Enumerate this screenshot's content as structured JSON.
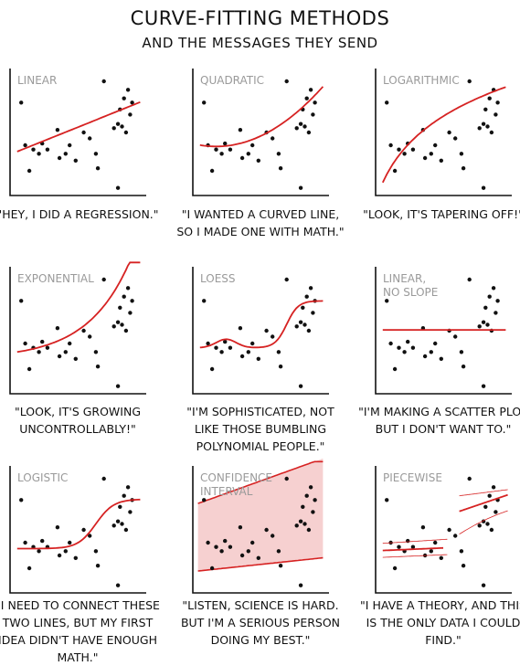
{
  "title": "Curve-Fitting Methods",
  "subtitle": "and the messages they send",
  "chart_data": [
    {
      "type": "scatter",
      "title": "Linear",
      "caption": "\"Hey, I did a regression.\"",
      "points": [
        [
          0.5,
          0.9
        ],
        [
          0.7,
          0.1
        ],
        [
          0.6,
          0.4
        ],
        [
          0.8,
          0.35
        ],
        [
          0.94,
          0.3
        ],
        [
          1.02,
          0.42
        ],
        [
          1.15,
          0.35
        ],
        [
          1.4,
          0.58
        ],
        [
          1.45,
          0.25
        ],
        [
          1.6,
          0.3
        ],
        [
          1.7,
          0.4
        ],
        [
          1.85,
          0.22
        ],
        [
          2.05,
          0.55
        ],
        [
          2.2,
          0.48
        ],
        [
          2.35,
          0.3
        ],
        [
          2.4,
          0.13
        ],
        [
          2.55,
          1.15
        ],
        [
          2.8,
          0.6
        ],
        [
          2.9,
          0.65
        ],
        [
          2.95,
          0.82
        ],
        [
          3.05,
          0.95
        ],
        [
          3.15,
          1.05
        ],
        [
          3.25,
          0.9
        ],
        [
          3.2,
          0.76
        ],
        [
          3.0,
          0.62
        ],
        [
          3.1,
          0.55
        ],
        [
          2.9,
          -0.1
        ]
      ],
      "curve": "linear"
    },
    {
      "type": "scatter",
      "title": "Quadratic",
      "caption": "\"I wanted a curved line, so I made one with math.\"",
      "points": [
        [
          0.5,
          0.9
        ],
        [
          0.7,
          0.1
        ],
        [
          0.6,
          0.4
        ],
        [
          0.8,
          0.35
        ],
        [
          0.94,
          0.3
        ],
        [
          1.02,
          0.42
        ],
        [
          1.15,
          0.35
        ],
        [
          1.4,
          0.58
        ],
        [
          1.45,
          0.25
        ],
        [
          1.6,
          0.3
        ],
        [
          1.7,
          0.4
        ],
        [
          1.85,
          0.22
        ],
        [
          2.05,
          0.55
        ],
        [
          2.2,
          0.48
        ],
        [
          2.35,
          0.3
        ],
        [
          2.4,
          0.13
        ],
        [
          2.55,
          1.15
        ],
        [
          2.8,
          0.6
        ],
        [
          2.9,
          0.65
        ],
        [
          2.95,
          0.82
        ],
        [
          3.05,
          0.95
        ],
        [
          3.15,
          1.05
        ],
        [
          3.25,
          0.9
        ],
        [
          3.2,
          0.76
        ],
        [
          3.0,
          0.62
        ],
        [
          3.1,
          0.55
        ],
        [
          2.9,
          -0.1
        ]
      ],
      "curve": "quadratic"
    },
    {
      "type": "scatter",
      "title": "Logarithmic",
      "caption": "\"Look, it's tapering off!\"",
      "points": [
        [
          0.5,
          0.9
        ],
        [
          0.7,
          0.1
        ],
        [
          0.6,
          0.4
        ],
        [
          0.8,
          0.35
        ],
        [
          0.94,
          0.3
        ],
        [
          1.02,
          0.42
        ],
        [
          1.15,
          0.35
        ],
        [
          1.4,
          0.58
        ],
        [
          1.45,
          0.25
        ],
        [
          1.6,
          0.3
        ],
        [
          1.7,
          0.4
        ],
        [
          1.85,
          0.22
        ],
        [
          2.05,
          0.55
        ],
        [
          2.2,
          0.48
        ],
        [
          2.35,
          0.3
        ],
        [
          2.4,
          0.13
        ],
        [
          2.55,
          1.15
        ],
        [
          2.8,
          0.6
        ],
        [
          2.9,
          0.65
        ],
        [
          2.95,
          0.82
        ],
        [
          3.05,
          0.95
        ],
        [
          3.15,
          1.05
        ],
        [
          3.25,
          0.9
        ],
        [
          3.2,
          0.76
        ],
        [
          3.0,
          0.62
        ],
        [
          3.1,
          0.55
        ],
        [
          2.9,
          -0.1
        ]
      ],
      "curve": "logarithmic"
    },
    {
      "type": "scatter",
      "title": "Exponential",
      "caption": "\"Look, it's growing uncontrollably!\"",
      "points": [
        [
          0.5,
          0.9
        ],
        [
          0.7,
          0.1
        ],
        [
          0.6,
          0.4
        ],
        [
          0.8,
          0.35
        ],
        [
          0.94,
          0.3
        ],
        [
          1.02,
          0.42
        ],
        [
          1.15,
          0.35
        ],
        [
          1.4,
          0.58
        ],
        [
          1.45,
          0.25
        ],
        [
          1.6,
          0.3
        ],
        [
          1.7,
          0.4
        ],
        [
          1.85,
          0.22
        ],
        [
          2.05,
          0.55
        ],
        [
          2.2,
          0.48
        ],
        [
          2.35,
          0.3
        ],
        [
          2.4,
          0.13
        ],
        [
          2.55,
          1.15
        ],
        [
          2.8,
          0.6
        ],
        [
          2.9,
          0.65
        ],
        [
          2.95,
          0.82
        ],
        [
          3.05,
          0.95
        ],
        [
          3.15,
          1.05
        ],
        [
          3.25,
          0.9
        ],
        [
          3.2,
          0.76
        ],
        [
          3.0,
          0.62
        ],
        [
          3.1,
          0.55
        ],
        [
          2.9,
          -0.1
        ]
      ],
      "curve": "exponential"
    },
    {
      "type": "scatter",
      "title": "LOESS",
      "caption": "\"I'm sophisticated, not like those bumbling polynomial people.\"",
      "points": [
        [
          0.5,
          0.9
        ],
        [
          0.7,
          0.1
        ],
        [
          0.6,
          0.4
        ],
        [
          0.8,
          0.35
        ],
        [
          0.94,
          0.3
        ],
        [
          1.02,
          0.42
        ],
        [
          1.15,
          0.35
        ],
        [
          1.4,
          0.58
        ],
        [
          1.45,
          0.25
        ],
        [
          1.6,
          0.3
        ],
        [
          1.7,
          0.4
        ],
        [
          1.85,
          0.22
        ],
        [
          2.05,
          0.55
        ],
        [
          2.2,
          0.48
        ],
        [
          2.35,
          0.3
        ],
        [
          2.4,
          0.13
        ],
        [
          2.55,
          1.15
        ],
        [
          2.8,
          0.6
        ],
        [
          2.9,
          0.65
        ],
        [
          2.95,
          0.82
        ],
        [
          3.05,
          0.95
        ],
        [
          3.15,
          1.05
        ],
        [
          3.25,
          0.9
        ],
        [
          3.2,
          0.76
        ],
        [
          3.0,
          0.62
        ],
        [
          3.1,
          0.55
        ],
        [
          2.9,
          -0.1
        ]
      ],
      "curve": "loess"
    },
    {
      "type": "scatter",
      "title": "Linear,\nno slope",
      "caption": "\"I'm making a scatter plot but I don't want to.\"",
      "points": [
        [
          0.5,
          0.9
        ],
        [
          0.7,
          0.1
        ],
        [
          0.6,
          0.4
        ],
        [
          0.8,
          0.35
        ],
        [
          0.94,
          0.3
        ],
        [
          1.02,
          0.42
        ],
        [
          1.15,
          0.35
        ],
        [
          1.4,
          0.58
        ],
        [
          1.45,
          0.25
        ],
        [
          1.6,
          0.3
        ],
        [
          1.7,
          0.4
        ],
        [
          1.85,
          0.22
        ],
        [
          2.05,
          0.55
        ],
        [
          2.2,
          0.48
        ],
        [
          2.35,
          0.3
        ],
        [
          2.4,
          0.13
        ],
        [
          2.55,
          1.15
        ],
        [
          2.8,
          0.6
        ],
        [
          2.9,
          0.65
        ],
        [
          2.95,
          0.82
        ],
        [
          3.05,
          0.95
        ],
        [
          3.15,
          1.05
        ],
        [
          3.25,
          0.9
        ],
        [
          3.2,
          0.76
        ],
        [
          3.0,
          0.62
        ],
        [
          3.1,
          0.55
        ],
        [
          2.9,
          -0.1
        ]
      ],
      "curve": "flat"
    },
    {
      "type": "scatter",
      "title": "Logistic",
      "caption": "\"I need to connect these two lines, but my first idea didn't have enough math.\"",
      "points": [
        [
          0.5,
          0.9
        ],
        [
          0.7,
          0.1
        ],
        [
          0.6,
          0.4
        ],
        [
          0.8,
          0.35
        ],
        [
          0.94,
          0.3
        ],
        [
          1.02,
          0.42
        ],
        [
          1.15,
          0.35
        ],
        [
          1.4,
          0.58
        ],
        [
          1.45,
          0.25
        ],
        [
          1.6,
          0.3
        ],
        [
          1.7,
          0.4
        ],
        [
          1.85,
          0.22
        ],
        [
          2.05,
          0.55
        ],
        [
          2.2,
          0.48
        ],
        [
          2.35,
          0.3
        ],
        [
          2.4,
          0.13
        ],
        [
          2.55,
          1.15
        ],
        [
          2.8,
          0.6
        ],
        [
          2.9,
          0.65
        ],
        [
          2.95,
          0.82
        ],
        [
          3.05,
          0.95
        ],
        [
          3.15,
          1.05
        ],
        [
          3.25,
          0.9
        ],
        [
          3.2,
          0.76
        ],
        [
          3.0,
          0.62
        ],
        [
          3.1,
          0.55
        ],
        [
          2.9,
          -0.1
        ]
      ],
      "curve": "logistic"
    },
    {
      "type": "scatter",
      "title": "Confidence\ninterval",
      "caption": "\"Listen, science is hard. But I'm a serious person doing my best.\"",
      "points": [
        [
          0.5,
          0.9
        ],
        [
          0.7,
          0.1
        ],
        [
          0.6,
          0.4
        ],
        [
          0.8,
          0.35
        ],
        [
          0.94,
          0.3
        ],
        [
          1.02,
          0.42
        ],
        [
          1.15,
          0.35
        ],
        [
          1.4,
          0.58
        ],
        [
          1.45,
          0.25
        ],
        [
          1.6,
          0.3
        ],
        [
          1.7,
          0.4
        ],
        [
          1.85,
          0.22
        ],
        [
          2.05,
          0.55
        ],
        [
          2.2,
          0.48
        ],
        [
          2.35,
          0.3
        ],
        [
          2.4,
          0.13
        ],
        [
          2.55,
          1.15
        ],
        [
          2.8,
          0.6
        ],
        [
          2.9,
          0.65
        ],
        [
          2.95,
          0.82
        ],
        [
          3.05,
          0.95
        ],
        [
          3.15,
          1.05
        ],
        [
          3.25,
          0.9
        ],
        [
          3.2,
          0.76
        ],
        [
          3.0,
          0.62
        ],
        [
          3.1,
          0.55
        ],
        [
          2.9,
          -0.1
        ]
      ],
      "curve": "confidence",
      "band_color": "#f6d0d0"
    },
    {
      "type": "scatter",
      "title": "Piecewise",
      "caption": "\"I have a theory, and this is the only data I could find.\"",
      "points": [
        [
          0.5,
          0.9
        ],
        [
          0.7,
          0.1
        ],
        [
          0.6,
          0.4
        ],
        [
          0.8,
          0.35
        ],
        [
          0.94,
          0.3
        ],
        [
          1.02,
          0.42
        ],
        [
          1.15,
          0.35
        ],
        [
          1.4,
          0.58
        ],
        [
          1.45,
          0.25
        ],
        [
          1.6,
          0.3
        ],
        [
          1.7,
          0.4
        ],
        [
          1.85,
          0.22
        ],
        [
          2.05,
          0.55
        ],
        [
          2.2,
          0.48
        ],
        [
          2.35,
          0.3
        ],
        [
          2.4,
          0.13
        ],
        [
          2.55,
          1.15
        ],
        [
          2.8,
          0.6
        ],
        [
          2.9,
          0.65
        ],
        [
          2.95,
          0.82
        ],
        [
          3.05,
          0.95
        ],
        [
          3.15,
          1.05
        ],
        [
          3.25,
          0.9
        ],
        [
          3.2,
          0.76
        ],
        [
          3.0,
          0.62
        ],
        [
          3.1,
          0.55
        ],
        [
          2.9,
          -0.1
        ]
      ],
      "curve": "piecewise"
    }
  ],
  "colors": {
    "fit_line": "#d62222",
    "band": "#f6d0d0",
    "axis": "#111111",
    "label": "#9a9a9a"
  }
}
